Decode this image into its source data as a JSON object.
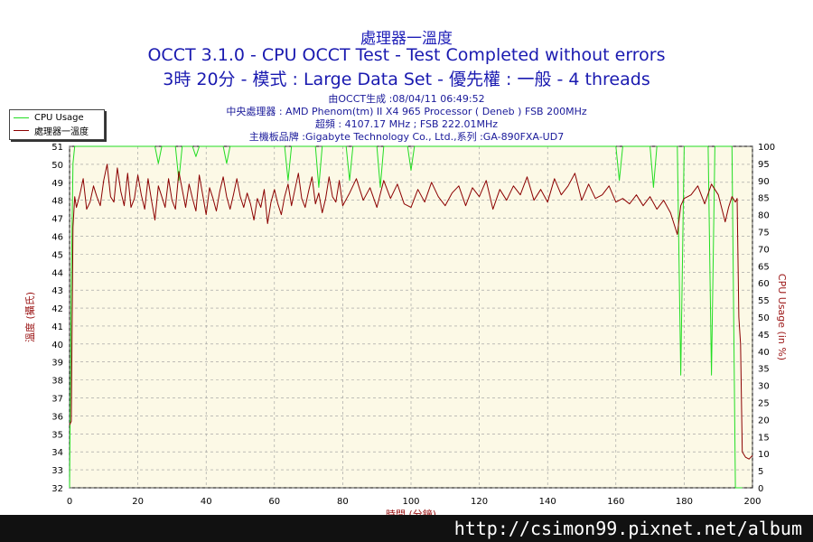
{
  "header": {
    "title": "處理器一溫度",
    "line1": "OCCT 3.1.0 - CPU OCCT Test - Test Completed without errors",
    "line2": "3時 20分 - 模式 : Large Data Set - 優先權 : 一般 - 4 threads",
    "info": [
      "由OCCT生成 :08/04/11 06:49:52",
      "中央處理器 : AMD Phenom(tm) II X4 965 Processor ( Deneb ) FSB 200MHz",
      "超頻 : 4107.17 MHz ; FSB 222.01MHz",
      "主機板品牌 :Gigabyte Technology Co., Ltd.,系列 :GA-890FXA-UD7"
    ]
  },
  "legend": {
    "cpu_label": "CPU Usage",
    "temp_label": "處理器一溫度"
  },
  "watermark": "http://csimon99.pixnet.net/album",
  "colors": {
    "cpu": "#22dd22",
    "temp": "#8b0000",
    "plot_bg": "#fcf9e6",
    "axis_label": "#9b1515"
  },
  "chart_data": {
    "type": "line",
    "xlabel": "時間 (分鐘)",
    "ylabel_left": "溫度 (攝氏)",
    "ylabel_right": "CPU Usage (in %)",
    "xlim": [
      0,
      200
    ],
    "ylim_left": [
      32,
      51
    ],
    "ylim_right": [
      0,
      100
    ],
    "x_ticks": [
      0,
      20,
      40,
      60,
      80,
      100,
      120,
      140,
      160,
      180,
      200
    ],
    "y_ticks_left": [
      32,
      33,
      34,
      35,
      36,
      37,
      38,
      39,
      40,
      41,
      42,
      43,
      44,
      45,
      46,
      47,
      48,
      49,
      50,
      51
    ],
    "y_ticks_right": [
      0,
      5,
      10,
      15,
      20,
      25,
      30,
      35,
      40,
      45,
      50,
      55,
      60,
      65,
      70,
      75,
      80,
      85,
      90,
      95,
      100
    ],
    "grid": true,
    "series": [
      {
        "name": "CPU Usage",
        "axis": "right",
        "x": [
          0,
          0.5,
          1,
          1.5,
          3,
          8,
          16,
          25,
          26,
          27,
          31,
          32,
          33,
          36,
          37,
          38,
          45,
          46,
          47,
          63,
          64,
          65,
          72,
          73,
          74,
          81,
          82,
          83,
          90,
          91,
          92,
          99,
          100,
          101,
          160,
          161,
          162,
          170,
          171,
          172,
          178,
          179,
          180,
          187,
          188,
          189,
          194,
          195,
          196,
          196.5,
          197
        ],
        "y": [
          0,
          60,
          95,
          100,
          100,
          100,
          100,
          100,
          95,
          100,
          100,
          90,
          100,
          100,
          97,
          100,
          100,
          95,
          100,
          100,
          90,
          100,
          100,
          88,
          100,
          100,
          90,
          100,
          100,
          88,
          100,
          100,
          93,
          100,
          100,
          90,
          100,
          100,
          88,
          100,
          100,
          33,
          100,
          100,
          33,
          100,
          100,
          0,
          0,
          0,
          0
        ]
      },
      {
        "name": "處理器一溫度",
        "axis": "left",
        "x": [
          0,
          0.5,
          1,
          1.5,
          2,
          3,
          4,
          5,
          6,
          7,
          8,
          9,
          10,
          11,
          12,
          13,
          14,
          15,
          16,
          17,
          18,
          19,
          20,
          21,
          22,
          23,
          24,
          25,
          26,
          27,
          28,
          29,
          30,
          31,
          32,
          33,
          34,
          35,
          36,
          37,
          38,
          39,
          40,
          41,
          42,
          43,
          44,
          45,
          46,
          47,
          48,
          49,
          50,
          51,
          52,
          53,
          54,
          55,
          56,
          57,
          58,
          59,
          60,
          61,
          62,
          63,
          64,
          65,
          66,
          67,
          68,
          69,
          70,
          71,
          72,
          73,
          74,
          75,
          76,
          77,
          78,
          79,
          80,
          82,
          84,
          86,
          88,
          90,
          92,
          94,
          96,
          98,
          100,
          102,
          104,
          106,
          108,
          110,
          112,
          114,
          116,
          118,
          120,
          122,
          124,
          126,
          128,
          130,
          132,
          134,
          136,
          138,
          140,
          142,
          144,
          146,
          148,
          150,
          152,
          154,
          156,
          158,
          160,
          162,
          164,
          166,
          168,
          170,
          172,
          174,
          176,
          178,
          179,
          180,
          182,
          184,
          186,
          188,
          190,
          192,
          193,
          194,
          195,
          195.5,
          196,
          196.5,
          197,
          198,
          199,
          200
        ],
        "y": [
          35.5,
          35.7,
          46.5,
          48.2,
          47.6,
          48.3,
          49.2,
          47.5,
          47.9,
          48.8,
          48.2,
          47.7,
          49.1,
          50.0,
          48.2,
          47.9,
          49.8,
          48.5,
          47.7,
          49.5,
          47.6,
          48.1,
          49.4,
          48.3,
          47.5,
          49.2,
          48.0,
          46.9,
          48.8,
          48.2,
          47.6,
          49.2,
          48.0,
          47.5,
          49.6,
          48.6,
          47.6,
          48.9,
          48.1,
          47.4,
          49.4,
          48.3,
          47.2,
          48.7,
          48.1,
          47.4,
          48.5,
          49.3,
          48.2,
          47.5,
          48.3,
          49.2,
          48.2,
          47.6,
          48.4,
          47.8,
          46.9,
          48.1,
          47.6,
          48.6,
          46.7,
          47.9,
          48.6,
          47.8,
          47.2,
          48.2,
          48.9,
          47.7,
          48.6,
          49.5,
          48.1,
          47.6,
          48.5,
          49.3,
          47.8,
          48.4,
          47.3,
          48.1,
          49.3,
          48.2,
          47.9,
          49.1,
          47.7,
          48.4,
          49.2,
          48.0,
          48.7,
          47.6,
          49.1,
          48.1,
          48.9,
          47.8,
          47.6,
          48.6,
          47.9,
          49.0,
          48.2,
          47.7,
          48.4,
          48.8,
          47.7,
          48.7,
          48.2,
          49.1,
          47.5,
          48.6,
          48.0,
          48.8,
          48.3,
          49.3,
          48.0,
          48.6,
          47.9,
          49.2,
          48.3,
          48.8,
          49.5,
          48.0,
          48.9,
          48.1,
          48.3,
          48.8,
          47.9,
          48.1,
          47.8,
          48.3,
          47.7,
          48.2,
          47.5,
          48.0,
          47.3,
          46.1,
          47.7,
          48.1,
          48.3,
          48.8,
          47.8,
          48.9,
          48.3,
          46.8,
          47.6,
          48.2,
          47.9,
          48.1,
          41.5,
          40.0,
          34.0,
          33.7,
          33.6,
          33.8
        ]
      }
    ]
  }
}
